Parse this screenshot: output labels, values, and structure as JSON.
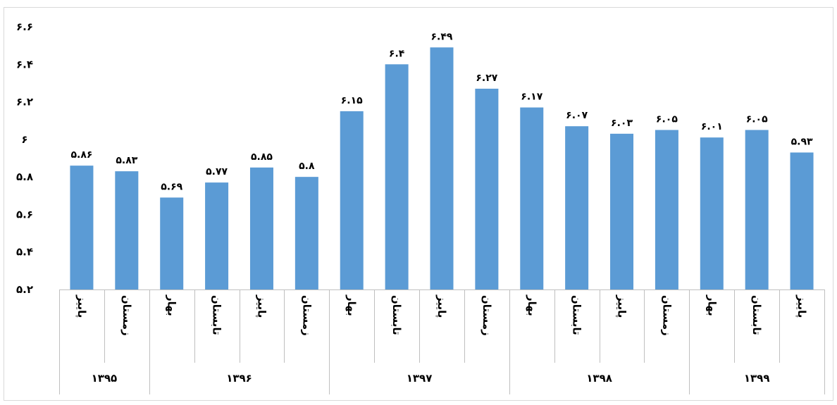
{
  "chart_data": {
    "type": "bar",
    "ylim": [
      5.2,
      6.6
    ],
    "yticks": [
      "۵.۲",
      "۵.۴",
      "۵.۶",
      "۵.۸",
      "۶",
      "۶.۲",
      "۶.۴",
      "۶.۶"
    ],
    "grid": false,
    "bar_color": "#5B9BD5",
    "values": [
      5.86,
      5.83,
      5.69,
      5.77,
      5.85,
      5.8,
      6.15,
      6.4,
      6.49,
      6.27,
      6.17,
      6.07,
      6.03,
      6.05,
      6.01,
      6.05,
      5.93
    ],
    "data_labels": [
      "۵.۸۶",
      "۵.۸۳",
      "۵.۶۹",
      "۵.۷۷",
      "۵.۸۵",
      "۵.۸",
      "۶.۱۵",
      "۶.۴",
      "۶.۴۹",
      "۶.۲۷",
      "۶.۱۷",
      "۶.۰۷",
      "۶.۰۳",
      "۶.۰۵",
      "۶.۰۱",
      "۶.۰۵",
      "۵.۹۳"
    ],
    "categories": [
      "پاییز",
      "زمستان",
      "بهار",
      "تابستان",
      "پاییز",
      "زمستان",
      "بهار",
      "تابستان",
      "پاییز",
      "زمستان",
      "بهار",
      "تابستان",
      "پاییز",
      "زمستان",
      "بهار",
      "تابستان",
      "پاییز"
    ],
    "groups": [
      {
        "label": "۱۳۹۵",
        "count": 2
      },
      {
        "label": "۱۳۹۶",
        "count": 4
      },
      {
        "label": "۱۳۹۷",
        "count": 4
      },
      {
        "label": "۱۳۹۸",
        "count": 4
      },
      {
        "label": "۱۳۹۹",
        "count": 3
      }
    ]
  }
}
